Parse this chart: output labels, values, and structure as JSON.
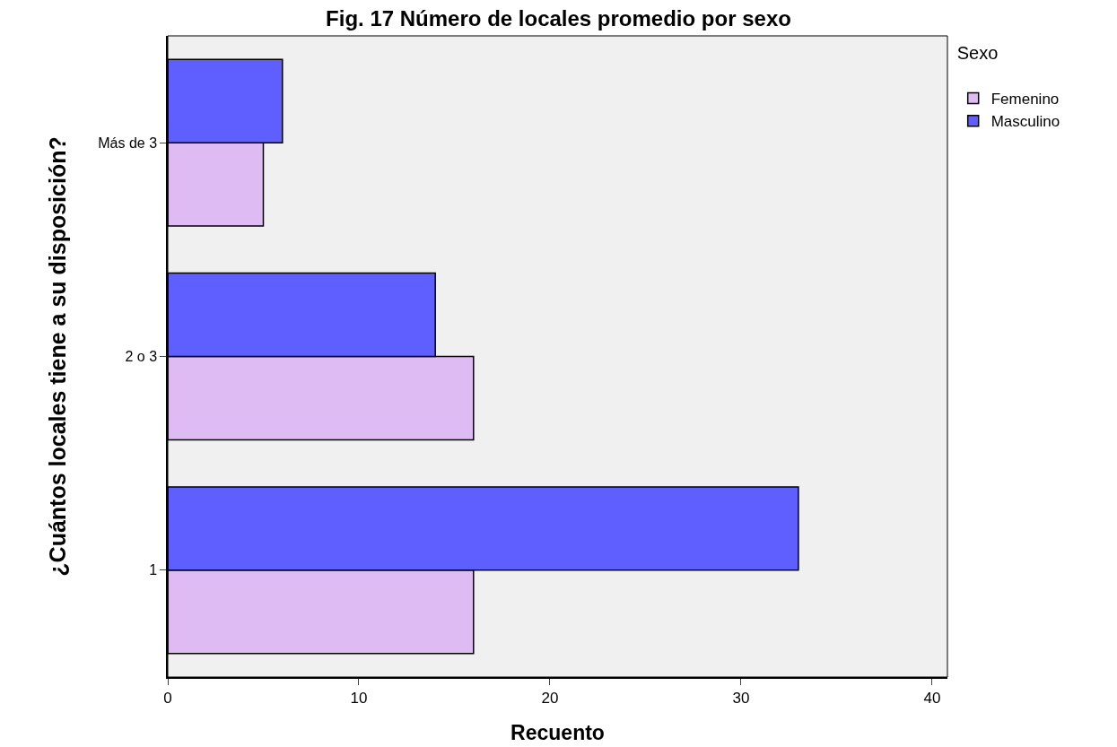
{
  "chart_data": {
    "type": "bar",
    "orientation": "horizontal",
    "title": "Fig. 17 Número de locales promedio por sexo",
    "xlabel": "Recuento",
    "ylabel": "¿Cuántos locales tiene a su disposición?",
    "legend_title": "Sexo",
    "categories": [
      "Más de 3",
      "2 o 3",
      "1"
    ],
    "series": [
      {
        "name": "Femenino",
        "color": "#dfbbf3",
        "values": [
          5,
          16,
          16
        ]
      },
      {
        "name": "Masculino",
        "color": "#5f5fff",
        "values": [
          6,
          14,
          33
        ]
      }
    ],
    "xlim": [
      0,
      40.8
    ],
    "xticks": [
      0,
      10,
      20,
      30,
      40
    ],
    "grid": false,
    "legend": "top right"
  }
}
